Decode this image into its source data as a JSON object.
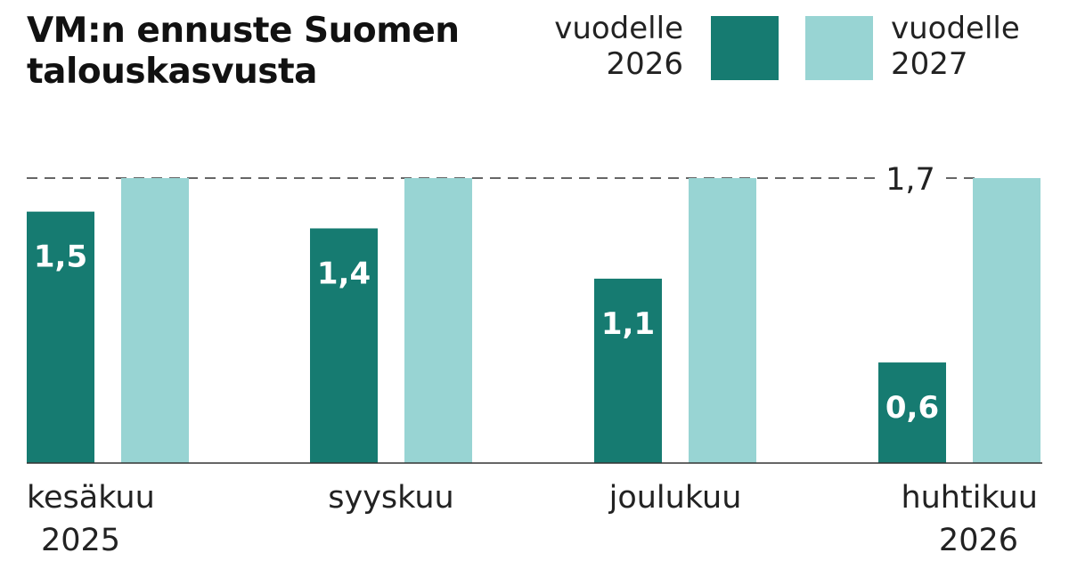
{
  "chart_data": {
    "type": "bar",
    "title": "VM:n ennuste Suomen talouskasvusta",
    "categories": [
      [
        "kesäkuu",
        "2025"
      ],
      [
        "syyskuu"
      ],
      [
        "joulukuu"
      ],
      [
        "huhtikuu",
        "2026"
      ]
    ],
    "series": [
      {
        "name": "vuodelle 2026",
        "color": "#167b71",
        "values": [
          1.5,
          1.4,
          1.1,
          0.6
        ],
        "labels": [
          "1,5",
          "1,4",
          "1,1",
          "0,6"
        ]
      },
      {
        "name": "vuodelle 2027",
        "color": "#98d4d3",
        "values": [
          1.7,
          1.7,
          1.7,
          1.7
        ]
      }
    ],
    "reference_line": {
      "value": 1.7,
      "label": "1,7",
      "style": "dashed"
    },
    "ylim": [
      0,
      1.7
    ],
    "grid": false,
    "legend_placement": "top-right"
  },
  "legend": [
    {
      "line1": "vuodelle",
      "line2": "2026"
    },
    {
      "line1": "vuodelle",
      "line2": "2027"
    }
  ]
}
